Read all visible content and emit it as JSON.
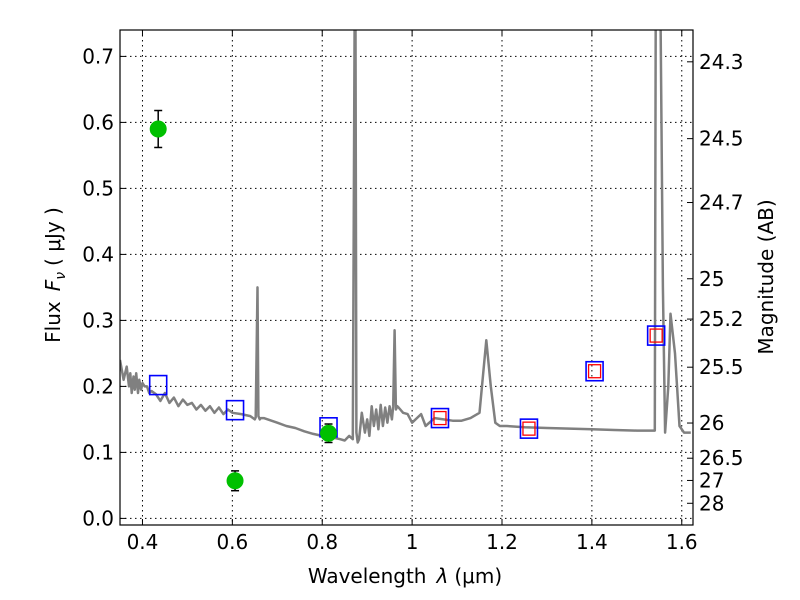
{
  "chart_data": {
    "type": "scatter",
    "title": "",
    "xlabel_prefix": "Wavelength",
    "xlabel_symbol": "λ",
    "xlabel_units": "(μm)",
    "ylabel_prefix": "Flux",
    "ylabel_symbol": "F",
    "ylabel_subscript": "ν",
    "ylabel_units": "( μJy )",
    "y2label": "Magnitude (AB)",
    "xlim": [
      0.35,
      1.625
    ],
    "ylim": [
      -0.01,
      0.74
    ],
    "grid": true,
    "x_ticks": [
      0.4,
      0.6,
      0.8,
      1.0,
      1.2,
      1.4,
      1.6
    ],
    "x_tick_labels": [
      "0.4",
      "0.6",
      "0.8",
      "1",
      "1.2",
      "1.4",
      "1.6"
    ],
    "y_ticks": [
      0.0,
      0.1,
      0.2,
      0.3,
      0.4,
      0.5,
      0.6,
      0.7
    ],
    "y_tick_labels": [
      "0.0",
      "0.1",
      "0.2",
      "0.3",
      "0.4",
      "0.5",
      "0.6",
      "0.7"
    ],
    "mag_ticks": [
      {
        "label": "24.3",
        "flux": 0.6918
      },
      {
        "label": "24.5",
        "flux": 0.5754
      },
      {
        "label": "24.7",
        "flux": 0.4786
      },
      {
        "label": "25",
        "flux": 0.3631
      },
      {
        "label": "25.2",
        "flux": 0.302
      },
      {
        "label": "25.5",
        "flux": 0.2291
      },
      {
        "label": "26",
        "flux": 0.1445
      },
      {
        "label": "26.5",
        "flux": 0.0912
      },
      {
        "label": "27",
        "flux": 0.0575
      },
      {
        "label": "28",
        "flux": 0.0229
      }
    ],
    "colors": {
      "model": "#808080",
      "observed": "#00c000",
      "model_band": "#0000ff",
      "obs_band": "#ff0000",
      "errorbar": "#000000"
    },
    "series": [
      {
        "name": "model spectrum",
        "kind": "line",
        "x": [
          0.35,
          0.358,
          0.365,
          0.37,
          0.373,
          0.376,
          0.38,
          0.383,
          0.386,
          0.39,
          0.393,
          0.397,
          0.4,
          0.405,
          0.41,
          0.415,
          0.42,
          0.43,
          0.44,
          0.45,
          0.46,
          0.47,
          0.48,
          0.49,
          0.5,
          0.51,
          0.52,
          0.53,
          0.54,
          0.55,
          0.56,
          0.57,
          0.58,
          0.59,
          0.6,
          0.62,
          0.64,
          0.65,
          0.652,
          0.656,
          0.658,
          0.661,
          0.663,
          0.67,
          0.7,
          0.72,
          0.74,
          0.76,
          0.78,
          0.8,
          0.82,
          0.84,
          0.85,
          0.86,
          0.868,
          0.872,
          0.874,
          0.876,
          0.879,
          0.882,
          0.888,
          0.895,
          0.9,
          0.905,
          0.91,
          0.915,
          0.92,
          0.925,
          0.93,
          0.935,
          0.94,
          0.945,
          0.95,
          0.955,
          0.958,
          0.961,
          0.964,
          0.967,
          0.97,
          0.98,
          0.99,
          1.0,
          1.02,
          1.03,
          1.05,
          1.07,
          1.09,
          1.11,
          1.13,
          1.15,
          1.165,
          1.175,
          1.185,
          1.195,
          1.21,
          1.25,
          1.3,
          1.35,
          1.4,
          1.45,
          1.5,
          1.54,
          1.542,
          1.548,
          1.553,
          1.558,
          1.563,
          1.57,
          1.575,
          1.585,
          1.595,
          1.605,
          1.62
        ],
        "y": [
          0.24,
          0.21,
          0.23,
          0.2,
          0.22,
          0.19,
          0.215,
          0.195,
          0.22,
          0.19,
          0.21,
          0.195,
          0.205,
          0.2,
          0.2,
          0.19,
          0.193,
          0.188,
          0.178,
          0.19,
          0.175,
          0.183,
          0.17,
          0.18,
          0.172,
          0.175,
          0.165,
          0.172,
          0.163,
          0.17,
          0.16,
          0.168,
          0.158,
          0.165,
          0.16,
          0.158,
          0.155,
          0.15,
          0.153,
          0.35,
          0.155,
          0.15,
          0.152,
          0.152,
          0.145,
          0.14,
          0.137,
          0.132,
          0.128,
          0.125,
          0.123,
          0.12,
          0.118,
          0.125,
          0.12,
          0.75,
          0.75,
          0.13,
          0.115,
          0.12,
          0.16,
          0.13,
          0.15,
          0.125,
          0.17,
          0.14,
          0.165,
          0.135,
          0.172,
          0.14,
          0.168,
          0.145,
          0.17,
          0.15,
          0.17,
          0.285,
          0.165,
          0.17,
          0.168,
          0.16,
          0.158,
          0.145,
          0.158,
          0.14,
          0.152,
          0.15,
          0.148,
          0.148,
          0.152,
          0.16,
          0.27,
          0.2,
          0.145,
          0.14,
          0.14,
          0.138,
          0.137,
          0.136,
          0.135,
          0.134,
          0.133,
          0.133,
          0.75,
          0.75,
          0.75,
          0.35,
          0.13,
          0.2,
          0.31,
          0.25,
          0.14,
          0.13,
          0.13
        ]
      },
      {
        "name": "observed photometry",
        "kind": "errorbar",
        "x": [
          0.435,
          0.606,
          0.814
        ],
        "y": [
          0.59,
          0.057,
          0.129
        ],
        "yerr": [
          0.028,
          0.015,
          0.014
        ]
      },
      {
        "name": "model band fluxes",
        "kind": "open-square",
        "x": [
          0.435,
          0.606,
          0.814,
          1.062,
          1.26,
          1.406,
          1.543
        ],
        "y": [
          0.202,
          0.164,
          0.138,
          0.152,
          0.136,
          0.223,
          0.277
        ]
      },
      {
        "name": "observed band fluxes",
        "kind": "small-square",
        "x": [
          1.062,
          1.26,
          1.406,
          1.543
        ],
        "y": [
          0.152,
          0.136,
          0.223,
          0.277
        ]
      }
    ]
  }
}
